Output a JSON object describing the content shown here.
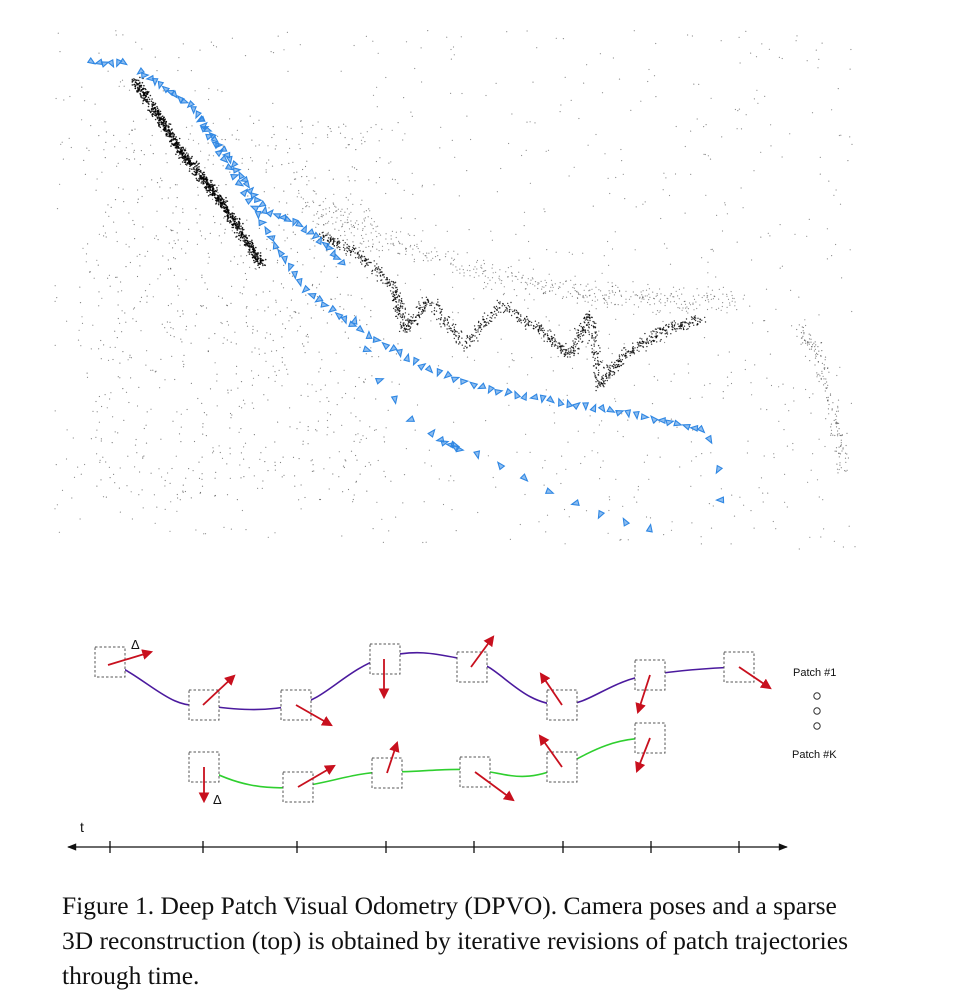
{
  "figure": {
    "delta_label": "Δ",
    "time_label": "t",
    "patch_first_label": "Patch #1",
    "patch_last_label": "Patch #K"
  },
  "caption": {
    "text": "Figure 1.  Deep Patch Visual Odometry (DPVO). Camera poses and a sparse 3D reconstruction (top) is obtained by iterative revisions of patch trajectories through time."
  },
  "colors": {
    "camera_pose": "#2f87e3",
    "point_cloud": "#000000",
    "arrow": "#c8101e",
    "trajectory_1": "#4b1a9e",
    "trajectory_k": "#2fcf2f"
  }
}
